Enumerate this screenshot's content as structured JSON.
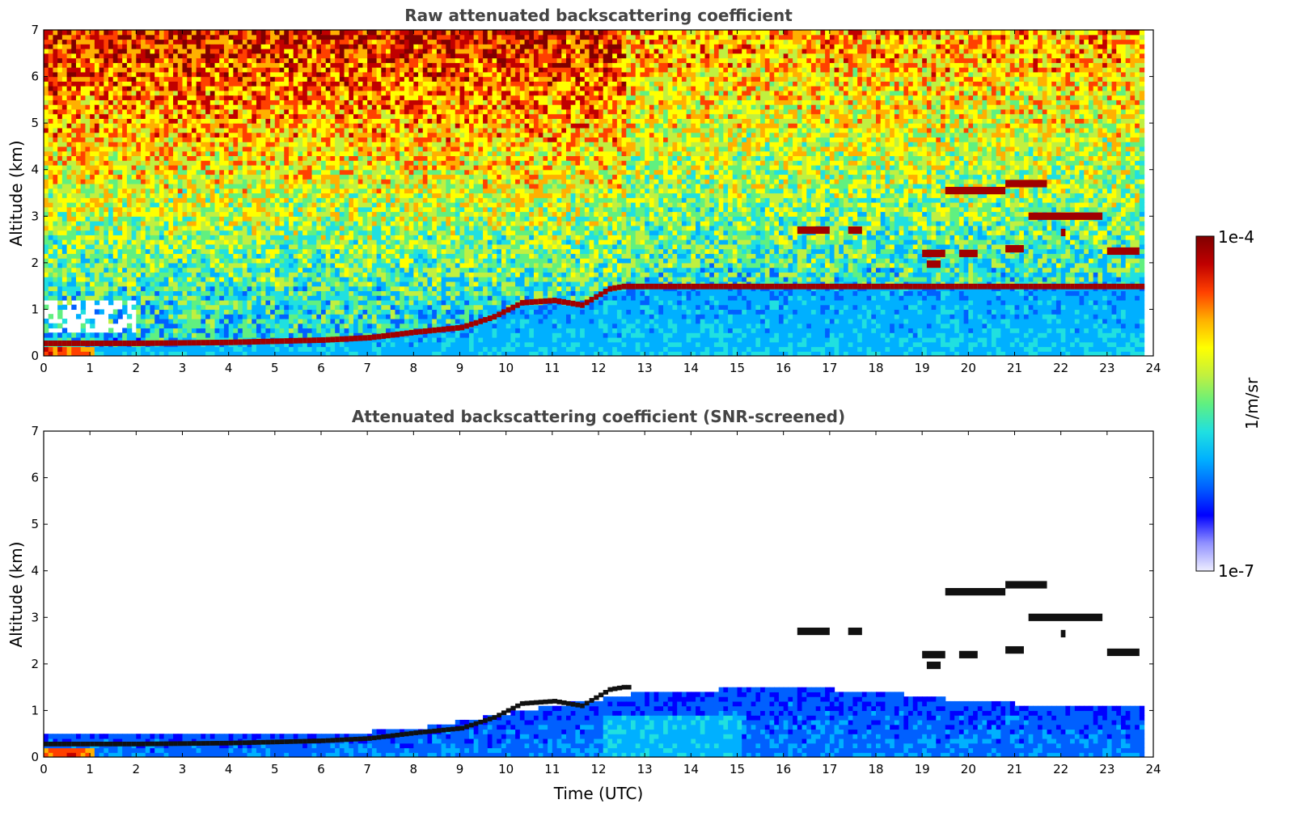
{
  "chart_data": [
    {
      "type": "heatmap",
      "title": "Raw attenuated backscattering coefficient",
      "xlabel": "",
      "ylabel": "Altitude (km)",
      "xlim": [
        0,
        24
      ],
      "ylim": [
        0,
        7
      ],
      "xticks": [
        "0",
        "1",
        "2",
        "3",
        "4",
        "5",
        "6",
        "7",
        "8",
        "9",
        "10",
        "11",
        "12",
        "13",
        "14",
        "15",
        "16",
        "17",
        "18",
        "19",
        "20",
        "21",
        "22",
        "23",
        "24"
      ],
      "yticks": [
        "0",
        "1",
        "2",
        "3",
        "4",
        "5",
        "6",
        "7"
      ],
      "data_end_time": 23.8,
      "boundary_layer_top_km": [
        [
          0,
          0.28
        ],
        [
          2,
          0.28
        ],
        [
          4,
          0.3
        ],
        [
          6,
          0.35
        ],
        [
          7,
          0.4
        ],
        [
          8,
          0.52
        ],
        [
          9,
          0.62
        ],
        [
          9.7,
          0.85
        ],
        [
          10.3,
          1.15
        ],
        [
          11,
          1.2
        ],
        [
          11.6,
          1.1
        ],
        [
          12.2,
          1.45
        ],
        [
          12.5,
          1.5
        ]
      ],
      "cloud_layers": [
        {
          "t_start": 16.3,
          "t_end": 17.0,
          "alt_km": 2.7
        },
        {
          "t_start": 17.4,
          "t_end": 17.7,
          "alt_km": 2.7
        },
        {
          "t_start": 19.0,
          "t_end": 19.5,
          "alt_km": 2.2
        },
        {
          "t_start": 19.1,
          "t_end": 19.4,
          "alt_km": 1.97
        },
        {
          "t_start": 19.8,
          "t_end": 20.2,
          "alt_km": 2.2
        },
        {
          "t_start": 19.5,
          "t_end": 20.8,
          "alt_km": 3.55
        },
        {
          "t_start": 20.8,
          "t_end": 21.7,
          "alt_km": 3.7
        },
        {
          "t_start": 20.8,
          "t_end": 21.2,
          "alt_km": 2.3
        },
        {
          "t_start": 21.3,
          "t_end": 22.9,
          "alt_km": 3.0
        },
        {
          "t_start": 23.0,
          "t_end": 23.7,
          "alt_km": 2.25
        },
        {
          "t_start": 22.0,
          "t_end": 22.1,
          "alt_km": 2.65
        }
      ],
      "grid": false
    },
    {
      "type": "heatmap",
      "title": "Attenuated backscattering coefficient (SNR-screened)",
      "xlabel": "Time (UTC)",
      "ylabel": "Altitude (km)",
      "xlim": [
        0,
        24
      ],
      "ylim": [
        0,
        7
      ],
      "xticks": [
        "0",
        "1",
        "2",
        "3",
        "4",
        "5",
        "6",
        "7",
        "8",
        "9",
        "10",
        "11",
        "12",
        "13",
        "14",
        "15",
        "16",
        "17",
        "18",
        "19",
        "20",
        "21",
        "22",
        "23",
        "24"
      ],
      "yticks": [
        "0",
        "1",
        "2",
        "3",
        "4",
        "5",
        "6",
        "7"
      ],
      "signal_top_km": [
        [
          0,
          0.45
        ],
        [
          6,
          0.45
        ],
        [
          8,
          0.55
        ],
        [
          10,
          0.9
        ],
        [
          12,
          1.2
        ],
        [
          13,
          1.35
        ],
        [
          16,
          1.45
        ],
        [
          18,
          1.35
        ],
        [
          20,
          1.15
        ],
        [
          22,
          1.05
        ],
        [
          23.8,
          1.0
        ]
      ],
      "grid": false
    }
  ],
  "colorbar": {
    "label": "1/m/sr",
    "max_label": "1e-4",
    "min_label": "1e-7",
    "colors": [
      "#eeeeff",
      "#9090ff",
      "#0000ff",
      "#0060ff",
      "#00b0ff",
      "#20e0e0",
      "#60f080",
      "#c0f040",
      "#ffff00",
      "#ffb000",
      "#ff4000",
      "#c00000",
      "#800000"
    ]
  }
}
